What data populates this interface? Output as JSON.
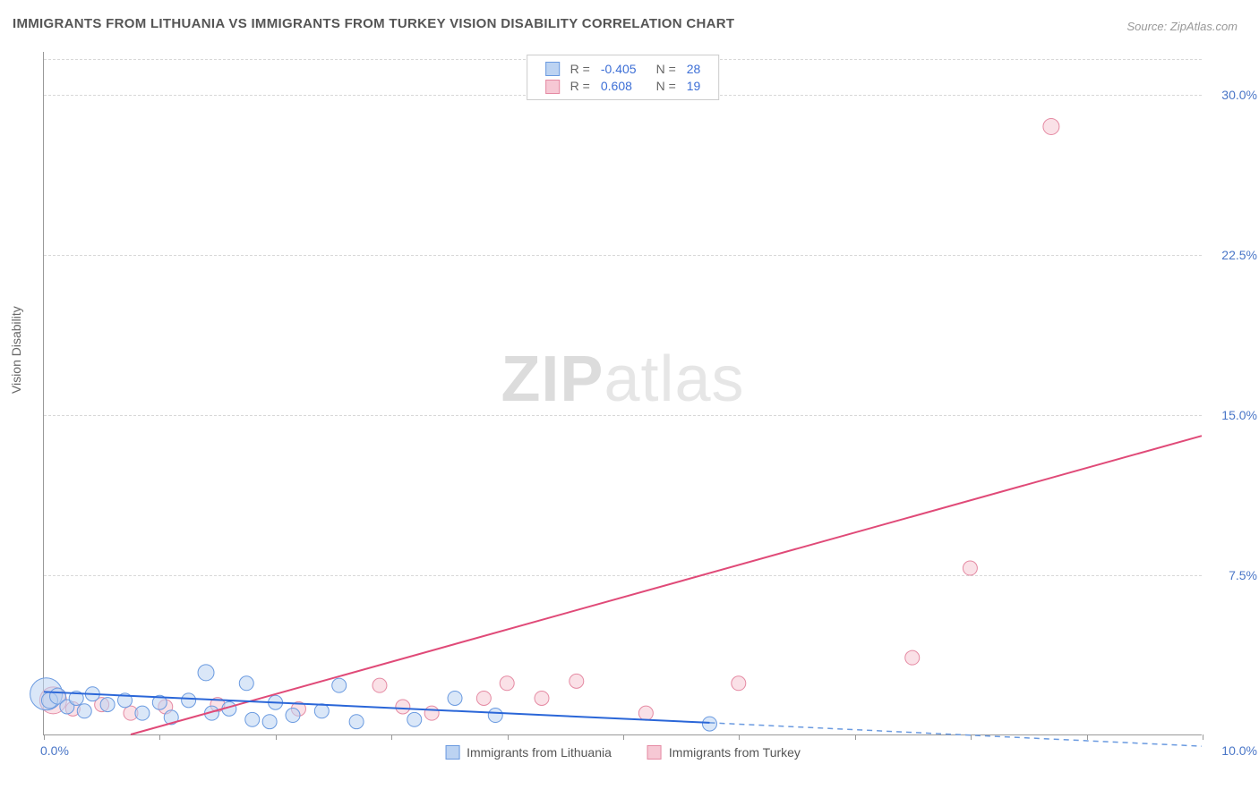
{
  "title": "IMMIGRANTS FROM LITHUANIA VS IMMIGRANTS FROM TURKEY VISION DISABILITY CORRELATION CHART",
  "source": "Source: ZipAtlas.com",
  "watermark_a": "ZIP",
  "watermark_b": "atlas",
  "y_axis_title": "Vision Disability",
  "chart": {
    "type": "scatter",
    "xlim": [
      0,
      10
    ],
    "ylim": [
      0,
      32
    ],
    "y_ticks": [
      7.5,
      15.0,
      22.5,
      30.0
    ],
    "y_tick_labels": [
      "7.5%",
      "15.0%",
      "22.5%",
      "30.0%"
    ],
    "x_ticks": [
      0,
      1,
      2,
      3,
      4,
      5,
      6,
      7,
      8,
      9,
      10
    ],
    "x_origin_label": "0.0%",
    "x_end_label": "10.0%",
    "background_color": "#ffffff",
    "grid_color": "#d8d8d8",
    "axis_color": "#999999",
    "tick_label_color": "#4a76c7",
    "series": {
      "lithuania": {
        "label": "Immigrants from Lithuania",
        "fill": "#bcd3f2",
        "stroke": "#6a9ae0",
        "fill_opacity": 0.55,
        "R": "-0.405",
        "N": "28",
        "trend": {
          "x1": 0.0,
          "y1": 2.0,
          "x2": 5.75,
          "y2": 0.55,
          "color": "#2a66d8",
          "width": 2
        },
        "trend_ext": {
          "x1": 5.75,
          "y1": 0.55,
          "x2": 10.0,
          "y2": -0.55,
          "color": "#6a9ae0",
          "dash": "6,5",
          "width": 1.5
        },
        "points": [
          {
            "x": 0.02,
            "y": 1.9,
            "r": 18
          },
          {
            "x": 0.05,
            "y": 1.6,
            "r": 9
          },
          {
            "x": 0.12,
            "y": 1.8,
            "r": 9
          },
          {
            "x": 0.2,
            "y": 1.3,
            "r": 8
          },
          {
            "x": 0.28,
            "y": 1.7,
            "r": 8
          },
          {
            "x": 0.35,
            "y": 1.1,
            "r": 8
          },
          {
            "x": 0.42,
            "y": 1.9,
            "r": 8
          },
          {
            "x": 0.55,
            "y": 1.4,
            "r": 8
          },
          {
            "x": 0.7,
            "y": 1.6,
            "r": 8
          },
          {
            "x": 0.85,
            "y": 1.0,
            "r": 8
          },
          {
            "x": 1.0,
            "y": 1.5,
            "r": 8
          },
          {
            "x": 1.1,
            "y": 0.8,
            "r": 8
          },
          {
            "x": 1.25,
            "y": 1.6,
            "r": 8
          },
          {
            "x": 1.4,
            "y": 2.9,
            "r": 9
          },
          {
            "x": 1.45,
            "y": 1.0,
            "r": 8
          },
          {
            "x": 1.6,
            "y": 1.2,
            "r": 8
          },
          {
            "x": 1.75,
            "y": 2.4,
            "r": 8
          },
          {
            "x": 1.8,
            "y": 0.7,
            "r": 8
          },
          {
            "x": 1.95,
            "y": 0.6,
            "r": 8
          },
          {
            "x": 2.0,
            "y": 1.5,
            "r": 8
          },
          {
            "x": 2.15,
            "y": 0.9,
            "r": 8
          },
          {
            "x": 2.4,
            "y": 1.1,
            "r": 8
          },
          {
            "x": 2.55,
            "y": 2.3,
            "r": 8
          },
          {
            "x": 2.7,
            "y": 0.6,
            "r": 8
          },
          {
            "x": 3.2,
            "y": 0.7,
            "r": 8
          },
          {
            "x": 3.55,
            "y": 1.7,
            "r": 8
          },
          {
            "x": 3.9,
            "y": 0.9,
            "r": 8
          },
          {
            "x": 5.75,
            "y": 0.5,
            "r": 8
          }
        ]
      },
      "turkey": {
        "label": "Immigrants from Turkey",
        "fill": "#f6c8d4",
        "stroke": "#e58aa3",
        "fill_opacity": 0.55,
        "R": "0.608",
        "N": "19",
        "trend": {
          "x1": 0.75,
          "y1": 0.0,
          "x2": 10.0,
          "y2": 14.0,
          "color": "#e04a78",
          "width": 2
        },
        "points": [
          {
            "x": 0.08,
            "y": 1.6,
            "r": 15
          },
          {
            "x": 0.25,
            "y": 1.2,
            "r": 8
          },
          {
            "x": 0.5,
            "y": 1.4,
            "r": 8
          },
          {
            "x": 0.75,
            "y": 1.0,
            "r": 8
          },
          {
            "x": 1.05,
            "y": 1.3,
            "r": 8
          },
          {
            "x": 1.5,
            "y": 1.4,
            "r": 8
          },
          {
            "x": 2.2,
            "y": 1.2,
            "r": 8
          },
          {
            "x": 2.9,
            "y": 2.3,
            "r": 8
          },
          {
            "x": 3.1,
            "y": 1.3,
            "r": 8
          },
          {
            "x": 3.35,
            "y": 1.0,
            "r": 8
          },
          {
            "x": 3.8,
            "y": 1.7,
            "r": 8
          },
          {
            "x": 4.0,
            "y": 2.4,
            "r": 8
          },
          {
            "x": 4.3,
            "y": 1.7,
            "r": 8
          },
          {
            "x": 4.6,
            "y": 2.5,
            "r": 8
          },
          {
            "x": 5.2,
            "y": 1.0,
            "r": 8
          },
          {
            "x": 6.0,
            "y": 2.4,
            "r": 8
          },
          {
            "x": 7.5,
            "y": 3.6,
            "r": 8
          },
          {
            "x": 8.0,
            "y": 7.8,
            "r": 8
          },
          {
            "x": 8.7,
            "y": 28.5,
            "r": 9
          }
        ]
      }
    }
  },
  "corr_legend": {
    "rows": [
      {
        "swatch_fill": "#bcd3f2",
        "swatch_stroke": "#6a9ae0",
        "r_label": "R =",
        "r_val": "-0.405",
        "n_label": "N =",
        "n_val": "28"
      },
      {
        "swatch_fill": "#f6c8d4",
        "swatch_stroke": "#e58aa3",
        "r_label": "R =",
        "r_val": "0.608",
        "n_label": "N =",
        "n_val": "19"
      }
    ]
  }
}
